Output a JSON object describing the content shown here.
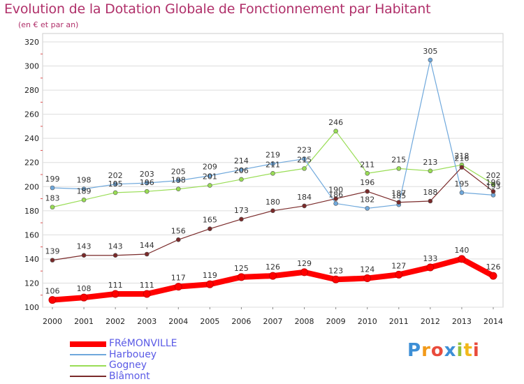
{
  "chart_data": {
    "type": "line",
    "title": "Evolution de la Dotation Globale de Fonctionnement par Habitant",
    "subtitle": "(en € et par an)",
    "x": [
      "2000",
      "2001",
      "2002",
      "2003",
      "2004",
      "2005",
      "2006",
      "2007",
      "2008",
      "2009",
      "2010",
      "2011",
      "2012",
      "2013",
      "2014"
    ],
    "ylim": [
      100,
      320
    ],
    "yticks": [
      100,
      120,
      140,
      160,
      180,
      200,
      220,
      240,
      260,
      280,
      300,
      320
    ],
    "grid": "horizontal",
    "legend_placement": "bottom-left",
    "series": [
      {
        "name": "FRéMONVILLE",
        "color": "#ff0000",
        "values": [
          106,
          108,
          111,
          111,
          117,
          119,
          125,
          126,
          129,
          123,
          124,
          127,
          133,
          140,
          126
        ]
      },
      {
        "name": "Harbouey",
        "color": "#6fa8dc",
        "values": [
          199,
          198,
          202,
          203,
          205,
          209,
          214,
          219,
          223,
          186,
          182,
          185,
          305,
          195,
          193
        ]
      },
      {
        "name": "Gogney",
        "color": "#99dd55",
        "values": [
          183,
          189,
          195,
          196,
          198,
          201,
          206,
          211,
          215,
          246,
          211,
          215,
          213,
          218,
          202
        ]
      },
      {
        "name": "Blâmont",
        "color": "#7a2a2a",
        "values": [
          139,
          143,
          143,
          144,
          156,
          165,
          173,
          180,
          184,
          190,
          196,
          187,
          188,
          216,
          196
        ]
      }
    ],
    "data_labels": {
      "FRéMONVILLE": [
        "106",
        "108",
        "111",
        "111",
        "117",
        "119",
        "125",
        "126",
        "129",
        "123",
        "124",
        "127",
        "133",
        "140",
        "126"
      ],
      "Harbouey": [
        "199",
        "198",
        "202",
        "203",
        "205",
        "209",
        "214",
        "219",
        "223",
        "186",
        "182",
        "185",
        "305",
        "195",
        "193"
      ],
      "Gogney": [
        "183",
        "189",
        "195",
        "196",
        "198",
        "201",
        "206",
        "211",
        "215",
        "246",
        "211",
        "215",
        "213",
        "218",
        "202"
      ],
      "Blâmont": [
        "139",
        "143",
        "143",
        "144",
        "156",
        "165",
        "173",
        "180",
        "184",
        "190",
        "196",
        "187",
        "188",
        "216",
        "196"
      ]
    }
  },
  "logo": {
    "letters": [
      "P",
      "r",
      "o",
      "x",
      "i",
      "t",
      "i"
    ],
    "colors": [
      "#3d8fd6",
      "#f29a1a",
      "#e94b3c",
      "#3d8fd6",
      "#94c23d",
      "#f2b81a",
      "#e94b3c"
    ]
  }
}
